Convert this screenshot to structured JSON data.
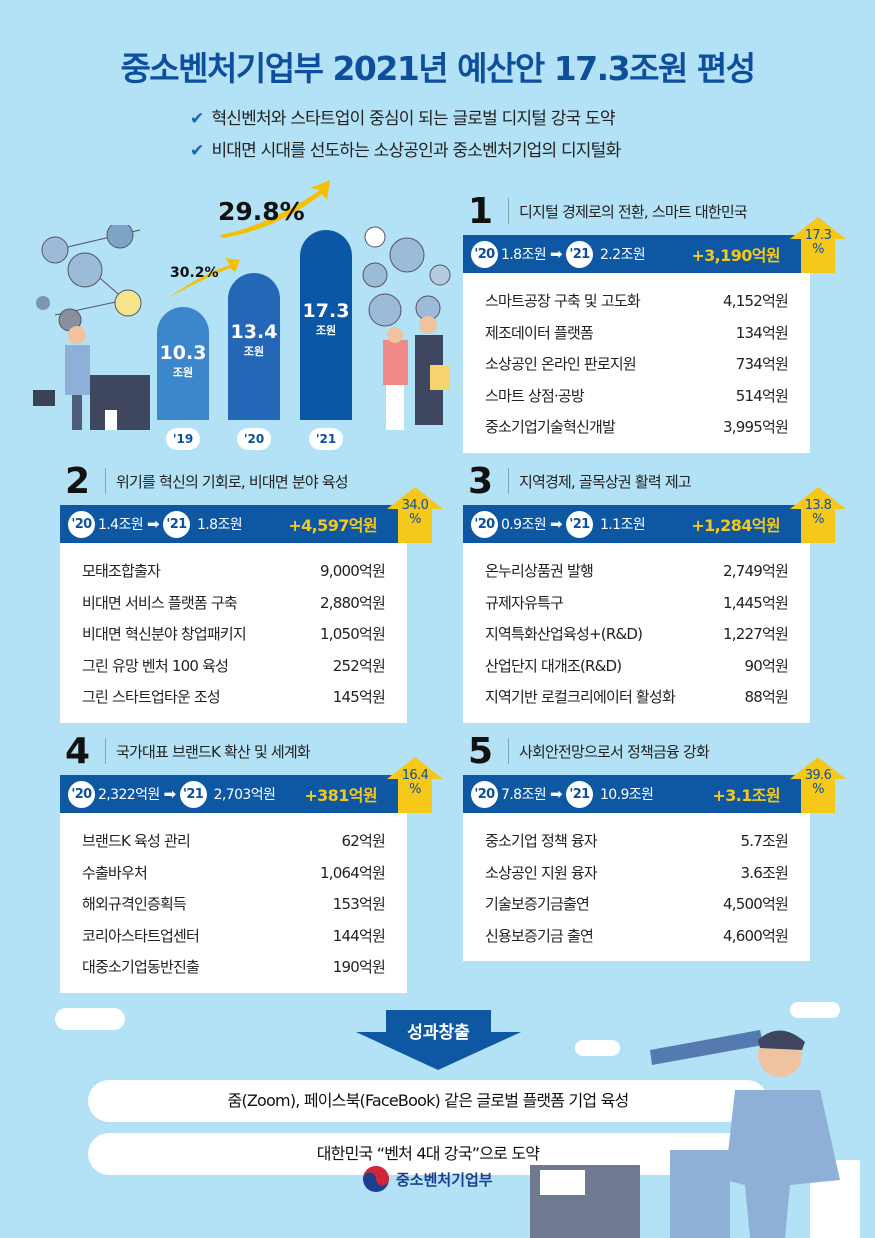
{
  "title": "중소벤처기업부 2021년 예산안 17.3조원 편성",
  "subtitles": [
    "혁신벤처와 스타트업이 중심이 되는 글로벌 디지털 강국 도약",
    "비대면 시대를 선도하는 소상공인과 중소벤처기업의 디지털화"
  ],
  "colors": {
    "background": "#b3e1f6",
    "primary": "#0d57a3",
    "accent": "#f5c81a",
    "title": "#0d4f9c"
  },
  "chart_data": {
    "type": "bar",
    "categories": [
      "'19",
      "'20",
      "'21"
    ],
    "values": [
      10.3,
      13.4,
      17.3
    ],
    "value_labels": [
      "10.3",
      "13.4",
      "17.3"
    ],
    "unit": "조원",
    "growth": [
      "30.2%",
      "29.8%"
    ],
    "colors": [
      "#3c86cb",
      "#2467b6",
      "#0b57a5"
    ]
  },
  "panels": [
    {
      "num": "1",
      "title": "디지털 경제로의 전환, 스마트 대한민국",
      "y20": "'20",
      "v20": "1.8조원",
      "y21": "'21",
      "v21": "2.2조원",
      "increase": "+3,190억원",
      "pct": "17.3",
      "pct_sign": "%",
      "items": [
        [
          "스마트공장 구축 및 고도화",
          "4,152억원"
        ],
        [
          "제조데이터 플랫폼",
          "134억원"
        ],
        [
          "소상공인 온라인 판로지원",
          "734억원"
        ],
        [
          "스마트 상점·공방",
          "514억원"
        ],
        [
          "중소기업기술혁신개발",
          "3,995억원"
        ]
      ]
    },
    {
      "num": "2",
      "title": "위기를 혁신의 기회로, 비대면 분야 육성",
      "y20": "'20",
      "v20": "1.4조원",
      "y21": "'21",
      "v21": "1.8조원",
      "increase": "+4,597억원",
      "pct": "34.0",
      "pct_sign": "%",
      "items": [
        [
          "모태조합출자",
          "9,000억원"
        ],
        [
          "비대면 서비스 플랫폼 구축",
          "2,880억원"
        ],
        [
          "비대면 혁신분야 창업패키지",
          "1,050억원"
        ],
        [
          "그린 유망 벤처 100 육성",
          "252억원"
        ],
        [
          "그린 스타트업타운 조성",
          "145억원"
        ]
      ]
    },
    {
      "num": "3",
      "title": "지역경제, 골목상권 활력 제고",
      "y20": "'20",
      "v20": "0.9조원",
      "y21": "'21",
      "v21": "1.1조원",
      "increase": "+1,284억원",
      "pct": "13.8",
      "pct_sign": "%",
      "items": [
        [
          "온누리상품권 발행",
          "2,749억원"
        ],
        [
          "규제자유특구",
          "1,445억원"
        ],
        [
          "지역특화산업육성+(R&D)",
          "1,227억원"
        ],
        [
          "산업단지 대개조(R&D)",
          "90억원"
        ],
        [
          "지역기반 로컬크리에이터 활성화",
          "88억원"
        ]
      ]
    },
    {
      "num": "4",
      "title": "국가대표 브랜드K 확산 및 세계화",
      "y20": "'20",
      "v20": "2,322억원",
      "y21": "'21",
      "v21": "2,703억원",
      "increase": "+381억원",
      "pct": "16.4",
      "pct_sign": "%",
      "items": [
        [
          "브랜드K 육성 관리",
          "62억원"
        ],
        [
          "수출바우처",
          "1,064억원"
        ],
        [
          "해외규격인증획득",
          "153억원"
        ],
        [
          "코리아스타트업센터",
          "144억원"
        ],
        [
          "대중소기업동반진출",
          "190억원"
        ]
      ]
    },
    {
      "num": "5",
      "title": "사회안전망으로서 정책금융 강화",
      "y20": "'20",
      "v20": "7.8조원",
      "y21": "'21",
      "v21": "10.9조원",
      "increase": "+3.1조원",
      "pct": "39.6",
      "pct_sign": "%",
      "items": [
        [
          "중소기업 정책 융자",
          "5.7조원"
        ],
        [
          "소상공인 지원 융자",
          "3.6조원"
        ],
        [
          "기술보증기금출연",
          "4,500억원"
        ],
        [
          "신용보증기금 출연",
          "4,600억원"
        ]
      ]
    }
  ],
  "outcome": {
    "label": "성과창출",
    "items": [
      "줌(Zoom), 페이스북(FaceBook) 같은 글로벌 플랫폼 기업 육성",
      "대한민국 “벤처 4대 강국”으로 도약"
    ]
  },
  "footer": {
    "ministry": "중소벤처기업부"
  }
}
